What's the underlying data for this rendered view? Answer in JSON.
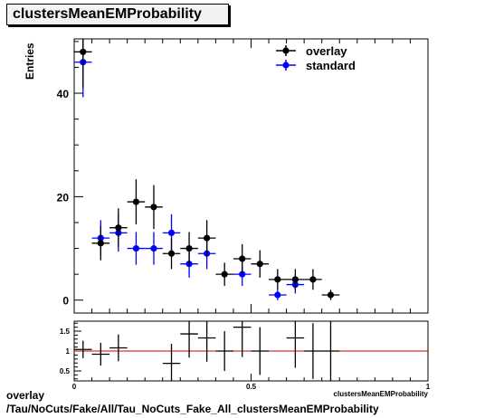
{
  "title": "clustersMeanEMProbability",
  "chart_data": [
    {
      "type": "scatter",
      "ylabel": "Entries",
      "xlim": [
        0,
        1
      ],
      "ylim": [
        -2.5,
        50.5
      ],
      "yticks": [
        0,
        20,
        40
      ],
      "bin_halfwidth": 0.025,
      "legend_position": "top-right",
      "series": [
        {
          "name": "overlay",
          "color": "#000000",
          "x": [
            0.025,
            0.075,
            0.125,
            0.175,
            0.225,
            0.275,
            0.325,
            0.375,
            0.425,
            0.475,
            0.525,
            0.575,
            0.625,
            0.675,
            0.725
          ],
          "y": [
            48,
            11,
            14,
            19,
            18,
            9,
            10,
            12,
            5,
            8,
            7,
            4,
            4,
            4,
            1
          ]
        },
        {
          "name": "standard",
          "color": "#0000ff",
          "x": [
            0.025,
            0.075,
            0.125,
            0.175,
            0.225,
            0.275,
            0.325,
            0.375,
            0.475,
            0.575,
            0.625
          ],
          "y": [
            46,
            12,
            13,
            10,
            10,
            13,
            7,
            9,
            5,
            1,
            3
          ]
        }
      ]
    },
    {
      "type": "scatter",
      "xlabel": "clustersMeanEMProbability",
      "xlim": [
        0,
        1
      ],
      "ylim": [
        0.25,
        1.75
      ],
      "xticks": [
        0,
        0.5,
        1
      ],
      "xtick_labels": [
        "0",
        "0.5",
        "1"
      ],
      "yticks": [
        0.5,
        1,
        1.5
      ],
      "reference_line": 1,
      "reference_color": "#cc0000",
      "series": [
        {
          "name": "ratio",
          "color": "#000000",
          "x": [
            0.025,
            0.075,
            0.125,
            0.275,
            0.325,
            0.375,
            0.425,
            0.475,
            0.525,
            0.625,
            0.675,
            0.725
          ],
          "y": [
            1.04,
            0.92,
            1.08,
            0.69,
            1.43,
            1.33,
            1.0,
            1.6,
            1.0,
            1.33,
            1.0,
            1.0
          ]
        }
      ]
    }
  ],
  "caption": {
    "line1": "overlay",
    "line2": "/Tau/NoCuts/Fake/All/Tau_NoCuts_Fake_All_clustersMeanEMProbability"
  }
}
